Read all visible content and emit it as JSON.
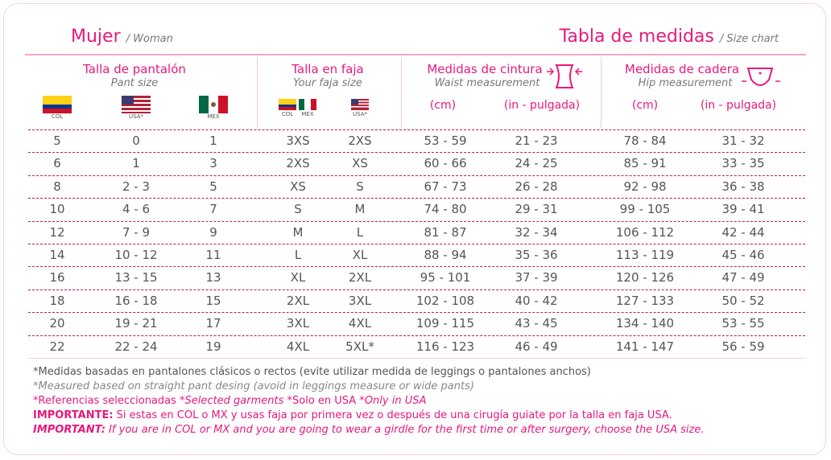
{
  "header": {
    "left_title": "Mujer",
    "left_subtitle": "/ Woman",
    "right_title": "Tabla de medidas",
    "right_subtitle": "/ Size chart"
  },
  "groups": [
    {
      "title": "Talla de pantalón",
      "subtitle": "Pant size"
    },
    {
      "title": "Talla en faja",
      "subtitle": "Your faja size"
    },
    {
      "title": "Medidas de cintura",
      "subtitle": "Waist measurement"
    },
    {
      "title": "Medidas de cadera",
      "subtitle": "Hip measurement"
    }
  ],
  "flags": {
    "pant": [
      "COL",
      "USA*",
      "MEX"
    ],
    "faja": [
      "COL",
      "MEX",
      "USA*"
    ]
  },
  "units": [
    "(cm)",
    "(in - pulgada)",
    "(cm)",
    "(in - pulgada)"
  ],
  "table": {
    "rows": [
      [
        "5",
        "0",
        "1",
        "3XS",
        "2XS",
        "53 - 59",
        "21 - 23",
        "78 - 84",
        "31 - 32"
      ],
      [
        "6",
        "1",
        "3",
        "2XS",
        "XS",
        "60 - 66",
        "24 - 25",
        "85 - 91",
        "33 - 35"
      ],
      [
        "8",
        "2 - 3",
        "5",
        "XS",
        "S",
        "67 - 73",
        "26 - 28",
        "92 - 98",
        "36 - 38"
      ],
      [
        "10",
        "4 - 6",
        "7",
        "S",
        "M",
        "74 - 80",
        "29 - 31",
        "99 - 105",
        "39 - 41"
      ],
      [
        "12",
        "7 - 9",
        "9",
        "M",
        "L",
        "81 - 87",
        "32 - 34",
        "106 - 112",
        "42 - 44"
      ],
      [
        "14",
        "10 - 12",
        "11",
        "L",
        "XL",
        "88 - 94",
        "35 - 36",
        "113 - 119",
        "45 - 46"
      ],
      [
        "16",
        "13 - 15",
        "13",
        "XL",
        "2XL",
        "95 - 101",
        "37 - 39",
        "120 - 126",
        "47 - 49"
      ],
      [
        "18",
        "16 - 18",
        "15",
        "2XL",
        "3XL",
        "102 - 108",
        "40 - 42",
        "127 - 133",
        "50 - 52"
      ],
      [
        "20",
        "19 - 21",
        "17",
        "3XL",
        "4XL",
        "109 - 115",
        "43 - 45",
        "134 - 140",
        "53 - 55"
      ],
      [
        "22",
        "22 - 24",
        "19",
        "4XL",
        "5XL*",
        "116 - 123",
        "46 - 49",
        "141 - 147",
        "56 - 59"
      ]
    ]
  },
  "notes": {
    "line1": "*Medidas basadas en pantalones clásicos o rectos (evite utilizar medida de leggings o pantalones anchos)",
    "line2": "*Measured based on straight pant desing (avoid in leggings measure or wide pants)",
    "line3": [
      "*Referencias seleccionadas",
      "*Selected garments",
      "*Solo en USA",
      "*Only in USA"
    ],
    "line4": {
      "label": "IMPORTANTE:",
      "text": "Si estas en COL o MX y usas faja por primera vez o después de una cirugía guiate por la talla en faja USA."
    },
    "line5": {
      "label": "IMPORTANT:",
      "text": "If you are in COL or MX and you are going to wear a girdle for the first time or after surgery, choose the USA size."
    }
  }
}
